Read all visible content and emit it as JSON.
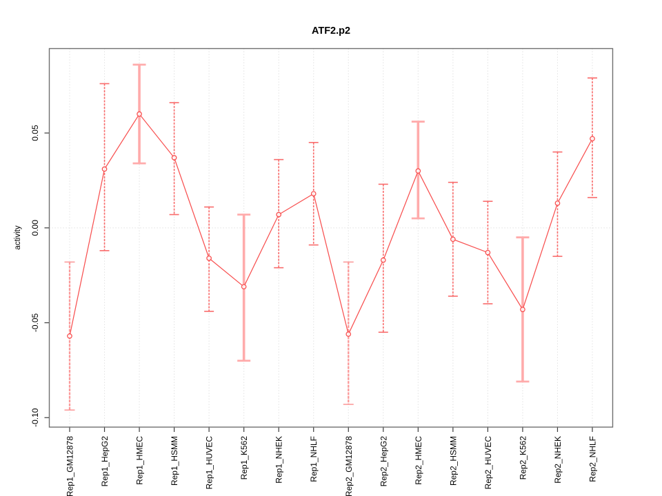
{
  "chart_data": {
    "type": "line",
    "title": "ATF2.p2",
    "xlabel": "",
    "ylabel": "activity",
    "categories": [
      "Rep1_GM12878",
      "Rep1_HepG2",
      "Rep1_HMEC",
      "Rep1_HSMM",
      "Rep1_HUVEC",
      "Rep1_K562",
      "Rep1_NHEK",
      "Rep1_NHLF",
      "Rep2_GM12878",
      "Rep2_HepG2",
      "Rep2_HMEC",
      "Rep2_HSMM",
      "Rep2_HUVEC",
      "Rep2_K562",
      "Rep2_NHEK",
      "Rep2_NHLF"
    ],
    "values": [
      -0.057,
      0.031,
      0.06,
      0.037,
      -0.016,
      -0.031,
      0.007,
      0.018,
      -0.056,
      -0.017,
      0.03,
      -0.006,
      -0.013,
      -0.043,
      0.013,
      0.047
    ],
    "error_low": [
      -0.096,
      -0.012,
      0.034,
      0.007,
      -0.044,
      -0.07,
      -0.021,
      -0.009,
      -0.093,
      -0.055,
      0.005,
      -0.036,
      -0.04,
      -0.081,
      -0.015,
      0.016
    ],
    "error_high": [
      -0.018,
      0.076,
      0.086,
      0.066,
      0.011,
      0.007,
      0.036,
      0.045,
      -0.018,
      0.023,
      0.056,
      0.024,
      0.014,
      -0.005,
      0.04,
      0.079
    ],
    "bar_style": [
      "medium",
      "thin",
      "wide",
      "thin",
      "thin",
      "wide",
      "thin",
      "thin",
      "medium",
      "thin",
      "wide",
      "thin",
      "thin",
      "wide",
      "thin",
      "thin"
    ],
    "yticks": [
      0.05,
      0.0,
      -0.05,
      -0.1
    ],
    "ytick_labels": [
      "0.05",
      "0.00",
      "-0.05",
      "-0.10"
    ],
    "ylim": [
      -0.105,
      0.0945
    ],
    "grid": "vertical dotted line at each category; horizontal dotted line at 0",
    "legend": "none",
    "colors": {
      "series_line": "#f85050",
      "marker_stroke": "#f85050",
      "errorbar_thin": "#f96a6a",
      "errorbar_medium": "#fb9a9a",
      "errorbar_wide": "#ffabab",
      "gridline": "#dedede",
      "plot_border": "#6e6e6e",
      "tick": "#3a3a3a",
      "text": "#000000",
      "background": "#ffffff"
    }
  }
}
